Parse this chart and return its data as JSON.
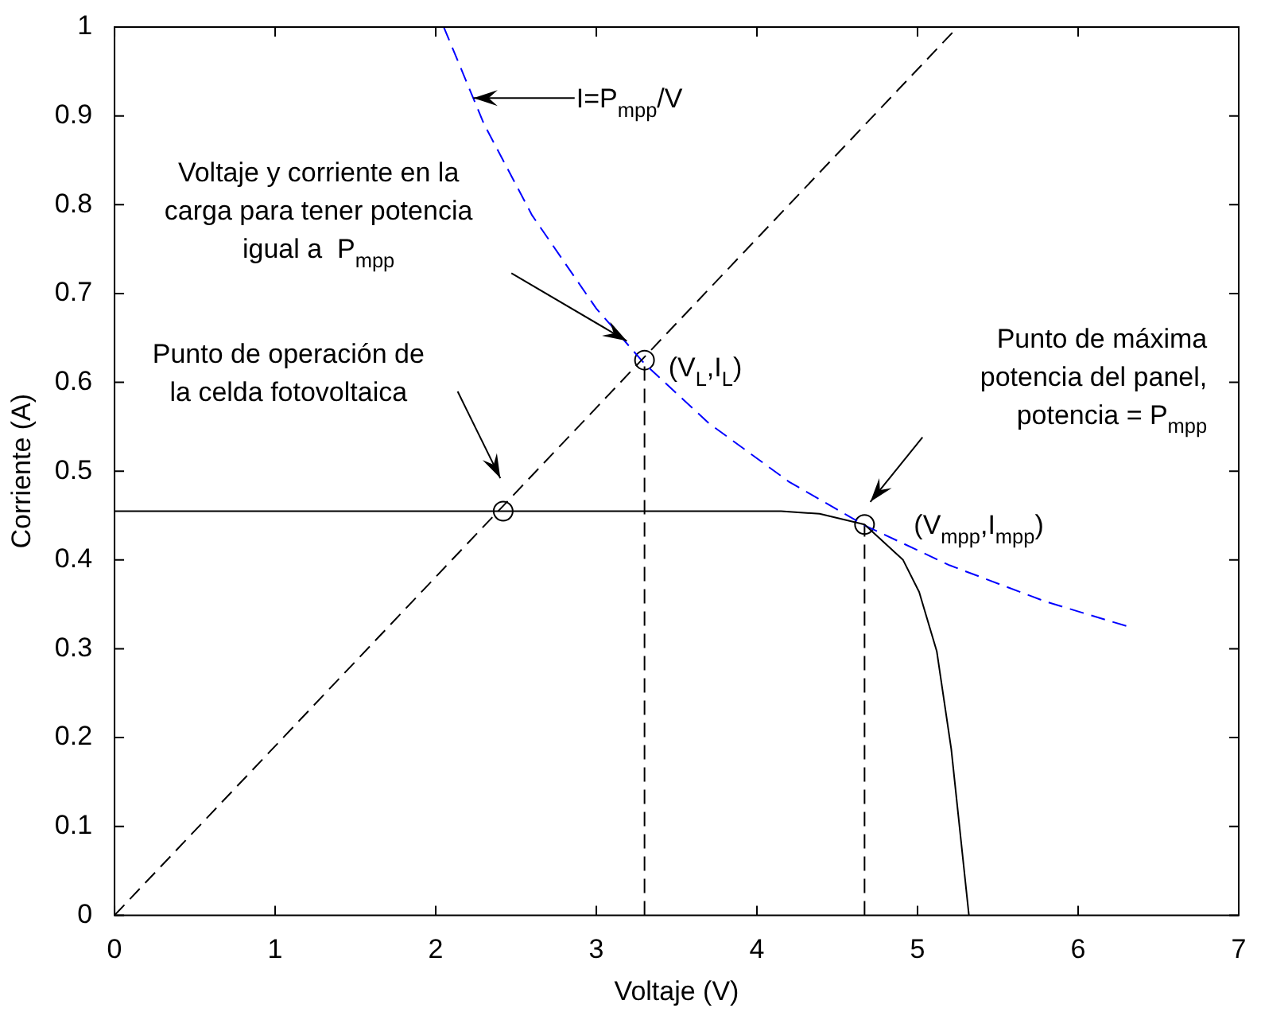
{
  "chart_data": {
    "type": "line",
    "xlabel": "Voltaje (V)",
    "ylabel": "Corriente (A)",
    "xlim": [
      0,
      7
    ],
    "ylim": [
      0,
      1
    ],
    "xticks": [
      0,
      1,
      2,
      3,
      4,
      5,
      6,
      7
    ],
    "yticks": [
      0,
      0.1,
      0.2,
      0.3,
      0.4,
      0.5,
      0.6,
      0.7,
      0.8,
      0.9,
      1
    ],
    "series": [
      {
        "color": "#000000",
        "line_style": "solid",
        "marker": "none",
        "x": [
          0,
          4.15,
          4.39,
          4.67,
          4.91,
          5.01,
          5.12,
          5.21,
          5.32
        ],
        "values": [
          0.455,
          0.455,
          0.452,
          0.44,
          0.4,
          0.364,
          0.297,
          0.187,
          0
        ]
      },
      {
        "color": "#000000",
        "line_style": "dashed",
        "marker": "none",
        "x": [
          0,
          5.25
        ],
        "values": [
          0,
          1
        ]
      },
      {
        "color": "#0000ff",
        "line_style": "dashed",
        "marker": "none",
        "x": [
          2.05,
          2.3,
          2.6,
          3,
          3.3,
          3.7,
          4.2,
          4.67,
          5.2,
          5.8,
          6.33
        ],
        "values": [
          1,
          0.891,
          0.788,
          0.683,
          0.621,
          0.554,
          0.488,
          0.439,
          0.394,
          0.353,
          0.324
        ]
      },
      {
        "color": "#000000",
        "line_style": "dashed",
        "marker": "none",
        "x": [
          3.3,
          3.3
        ],
        "values": [
          0,
          0.625
        ]
      },
      {
        "color": "#000000",
        "line_style": "dashed",
        "marker": "none",
        "x": [
          4.67,
          4.67
        ],
        "values": [
          0,
          0.44
        ]
      },
      {
        "type": "scatter",
        "color": "#000000",
        "marker": "circle",
        "x": [
          2.42,
          3.3,
          4.67
        ],
        "values": [
          0.455,
          0.625,
          0.44
        ]
      }
    ],
    "annotations": [
      "I=P$_{mpp}$/V",
      "Voltaje y corriente en la\ncarga para tener potencia\nigual a  P$_{mpp}$",
      "Punto de operación de\nla celda fotovoltaica",
      "Punto de máxima\npotencia del panel,\npotencia = P$_{mpp}$",
      {
        "text": "(V$_{mpp}$,I$_{mpp}$)",
        "x": 4.67,
        "y": 0.44
      },
      {
        "text": "(V$_{L}$,I$_{L}$)",
        "x": 3.3,
        "y": 0.625
      }
    ]
  }
}
